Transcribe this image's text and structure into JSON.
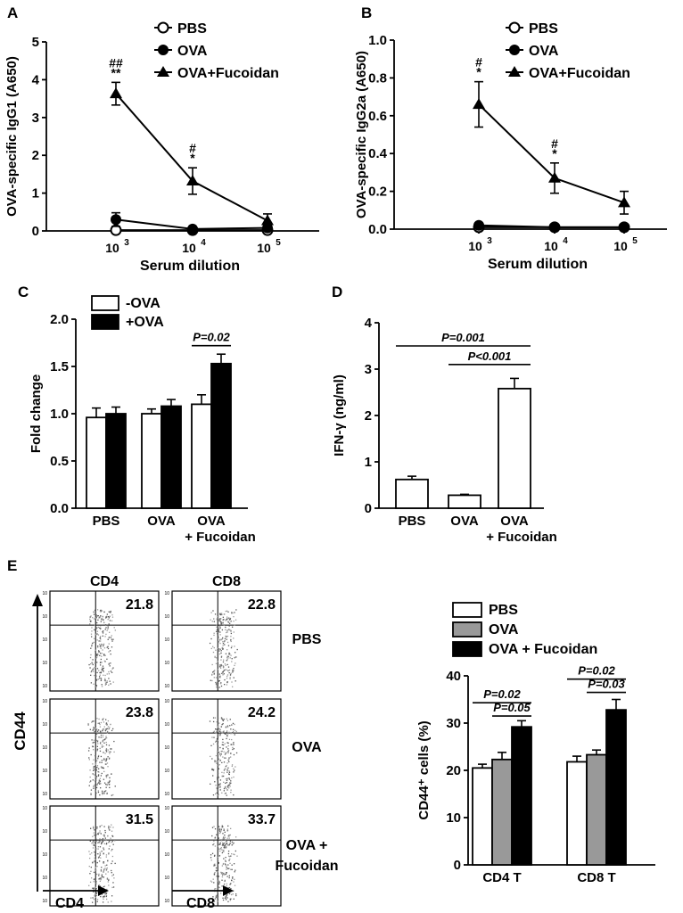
{
  "panels": {
    "A": "A",
    "B": "B",
    "C": "C",
    "D": "D",
    "E": "E"
  },
  "chart_data": [
    {
      "id": "A",
      "type": "line",
      "ylabel": "OVA-specific IgG1 (A650)",
      "xlabel": "Serum dilution",
      "x_ticks": [
        {
          "base": "10",
          "exp": "3"
        },
        {
          "base": "10",
          "exp": "4"
        },
        {
          "base": "10",
          "exp": "5"
        }
      ],
      "ylim": [
        0,
        5
      ],
      "y_ticks": [
        "0",
        "1",
        "2",
        "3",
        "4",
        "5"
      ],
      "series": [
        {
          "name": "PBS",
          "marker": "open-circle",
          "values": [
            0.02,
            0.02,
            0.02
          ],
          "errors": [
            0.02,
            0.02,
            0.02
          ]
        },
        {
          "name": "OVA",
          "marker": "filled-circle",
          "values": [
            0.3,
            0.05,
            0.08
          ],
          "errors": [
            0.18,
            0.03,
            0.03
          ]
        },
        {
          "name": "OVA+Fucoidan",
          "marker": "filled-triangle",
          "values": [
            3.63,
            1.32,
            0.27
          ],
          "errors": [
            0.3,
            0.35,
            0.18
          ]
        }
      ],
      "annotations": [
        {
          "x_index": 0,
          "lines": [
            "##",
            "**"
          ]
        },
        {
          "x_index": 1,
          "lines": [
            "#",
            "*"
          ]
        }
      ]
    },
    {
      "id": "B",
      "type": "line",
      "ylabel": "OVA-specific IgG2a (A650)",
      "xlabel": "Serum dilution",
      "x_ticks": [
        {
          "base": "10",
          "exp": "3"
        },
        {
          "base": "10",
          "exp": "4"
        },
        {
          "base": "10",
          "exp": "5"
        }
      ],
      "ylim": [
        0,
        1.0
      ],
      "y_ticks": [
        "0.0",
        "0.2",
        "0.4",
        "0.6",
        "0.8",
        "1.0"
      ],
      "series": [
        {
          "name": "PBS",
          "marker": "open-circle",
          "values": [
            0.01,
            0.01,
            0.01
          ],
          "errors": [
            0.01,
            0.01,
            0.01
          ]
        },
        {
          "name": "OVA",
          "marker": "filled-circle",
          "values": [
            0.02,
            0.01,
            0.01
          ],
          "errors": [
            0.01,
            0.01,
            0.01
          ]
        },
        {
          "name": "OVA+Fucoidan",
          "marker": "filled-triangle",
          "values": [
            0.66,
            0.27,
            0.14
          ],
          "errors": [
            0.12,
            0.08,
            0.06
          ]
        }
      ],
      "annotations": [
        {
          "x_index": 0,
          "lines": [
            "#",
            "*"
          ]
        },
        {
          "x_index": 1,
          "lines": [
            "#",
            "*"
          ]
        }
      ]
    },
    {
      "id": "C",
      "type": "bar",
      "ylabel": "Fold change",
      "ylim": [
        0,
        2.0
      ],
      "y_ticks": [
        "0.0",
        "0.5",
        "1.0",
        "1.5",
        "2.0"
      ],
      "groups": [
        {
          "lines": [
            "PBS"
          ]
        },
        {
          "lines": [
            "OVA"
          ]
        },
        {
          "lines": [
            "OVA",
            "+ Fucoidan"
          ]
        }
      ],
      "series": [
        {
          "name": "-OVA",
          "color": "#ffffff",
          "values": [
            0.96,
            1.0,
            1.1
          ],
          "errors": [
            0.1,
            0.05,
            0.1
          ]
        },
        {
          "name": "+OVA",
          "color": "#000000",
          "values": [
            1.0,
            1.08,
            1.53
          ],
          "errors": [
            0.07,
            0.07,
            0.1
          ]
        }
      ],
      "significance": [
        {
          "text": "P=0.02",
          "from": [
            2,
            0
          ],
          "to": [
            2,
            1
          ],
          "y": 1.72
        }
      ]
    },
    {
      "id": "D",
      "type": "bar",
      "ylabel": "IFN-γ (ng/ml)",
      "ylim": [
        0,
        4
      ],
      "y_ticks": [
        "0",
        "1",
        "2",
        "3",
        "4"
      ],
      "groups": [
        {
          "lines": [
            "PBS"
          ]
        },
        {
          "lines": [
            "OVA"
          ]
        },
        {
          "lines": [
            "OVA",
            "+ Fucoidan"
          ]
        }
      ],
      "series": [
        {
          "name": "IFN-γ",
          "color": "#ffffff",
          "values": [
            0.62,
            0.28,
            2.58
          ],
          "errors": [
            0.07,
            0.02,
            0.22
          ]
        }
      ],
      "significance": [
        {
          "text": "P=0.001",
          "from": [
            0,
            0
          ],
          "to": [
            2,
            0
          ],
          "y": 3.5
        },
        {
          "text": "P<0.001",
          "from": [
            1,
            0
          ],
          "to": [
            2,
            0
          ],
          "y": 3.1
        }
      ]
    },
    {
      "id": "E-bar",
      "type": "bar",
      "ylabel": "CD44⁺ cells (%)",
      "ylim": [
        0,
        40
      ],
      "y_ticks": [
        "0",
        "10",
        "20",
        "30",
        "40"
      ],
      "groups": [
        {
          "lines": [
            "CD4 T"
          ]
        },
        {
          "lines": [
            "CD8 T"
          ]
        }
      ],
      "series": [
        {
          "name": "PBS",
          "color": "#ffffff",
          "values": [
            20.5,
            21.8
          ],
          "errors": [
            0.8,
            1.2
          ]
        },
        {
          "name": "OVA",
          "color": "#999999",
          "values": [
            22.3,
            23.3
          ],
          "errors": [
            1.5,
            1.0
          ]
        },
        {
          "name": "OVA + Fucoidan",
          "color": "#000000",
          "values": [
            29.2,
            32.8
          ],
          "errors": [
            1.3,
            2.2
          ]
        }
      ],
      "significance": [
        {
          "text": "P=0.02",
          "from": [
            0,
            0
          ],
          "to": [
            0,
            2
          ],
          "y": 34.3
        },
        {
          "text": "P=0.05",
          "from": [
            0,
            1
          ],
          "to": [
            0,
            2
          ],
          "y": 31.5
        },
        {
          "text": "P=0.02",
          "from": [
            1,
            0
          ],
          "to": [
            1,
            2
          ],
          "y": 39.3
        },
        {
          "text": "P=0.03",
          "from": [
            1,
            1
          ],
          "to": [
            1,
            2
          ],
          "y": 36.5
        }
      ]
    }
  ],
  "flow": {
    "col_titles": [
      "CD4",
      "CD8"
    ],
    "row_labels": [
      [
        "PBS"
      ],
      [
        "OVA"
      ],
      [
        "OVA +",
        "Fucoidan"
      ]
    ],
    "values": [
      [
        "21.8",
        "22.8"
      ],
      [
        "23.8",
        "24.2"
      ],
      [
        "31.5",
        "33.7"
      ]
    ],
    "y_axis": "CD44",
    "x_axes": [
      "CD4",
      "CD8"
    ],
    "axis_tick": "10"
  }
}
